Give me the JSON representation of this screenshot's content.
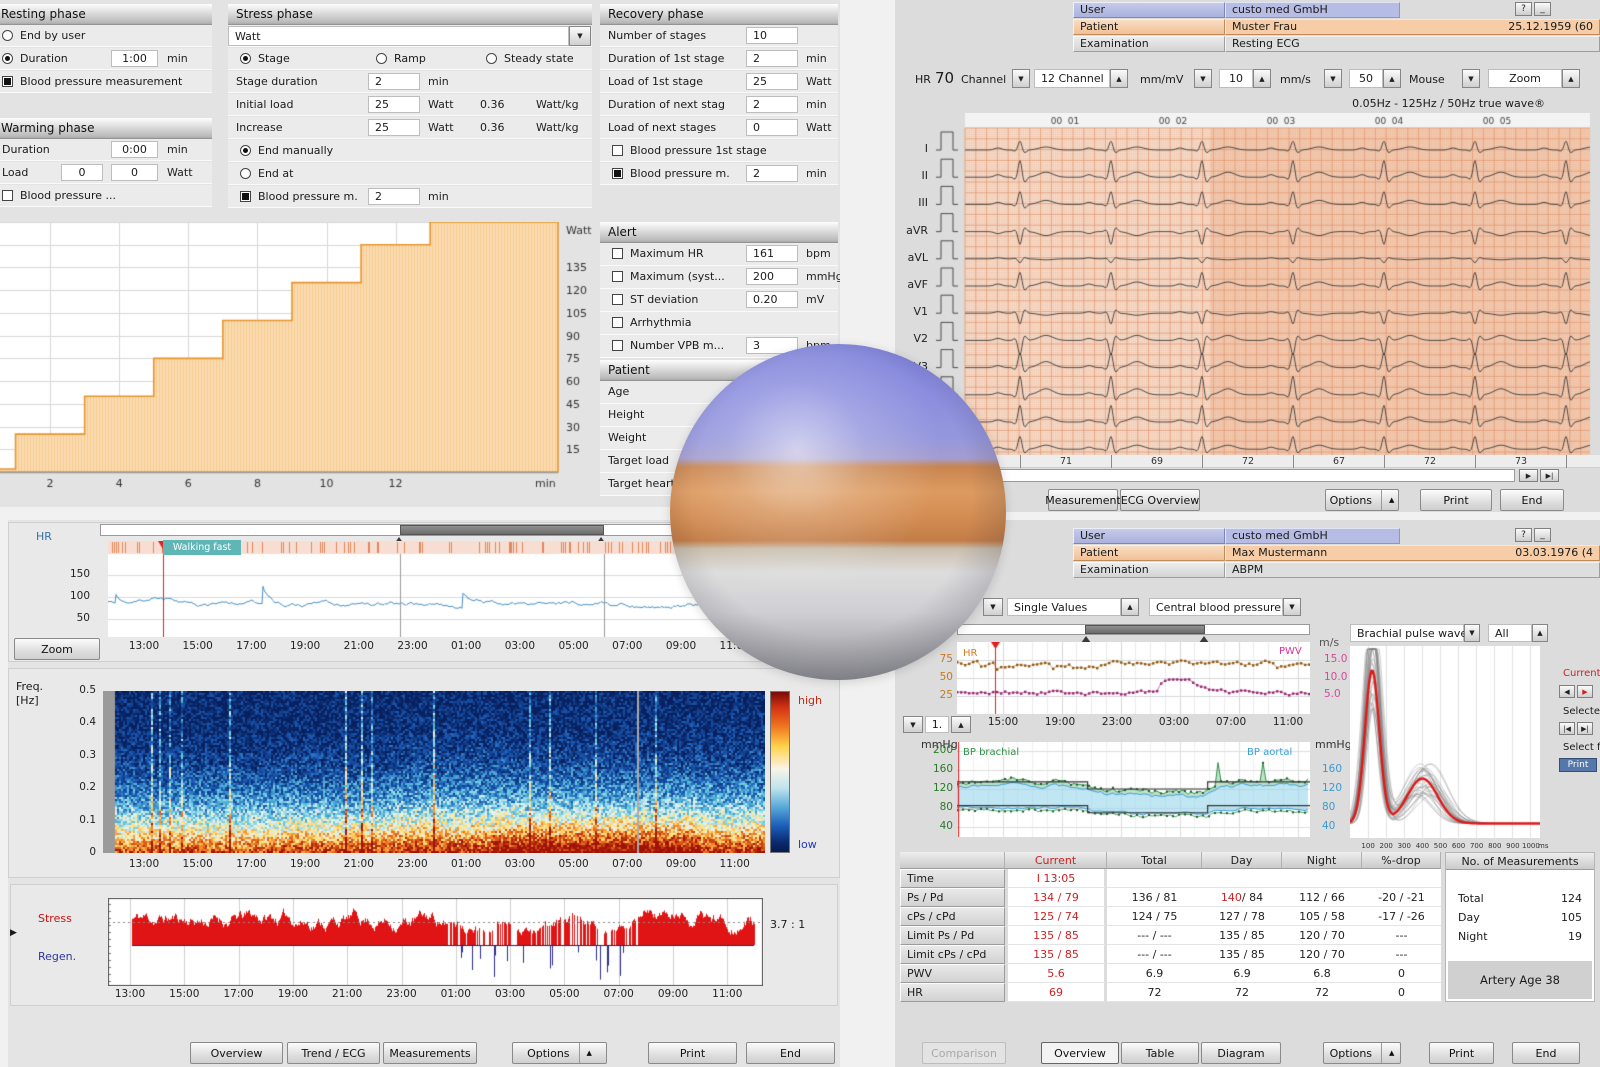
{
  "icons": {
    "down": "▼",
    "up": "▲",
    "right": "▶",
    "right_end": "▶|",
    "left": "◀",
    "left_end": "|◀",
    "play": "▶",
    "help": "?",
    "minimize": "_"
  },
  "top_left": {
    "resting_phase": {
      "title": "Resting phase",
      "end_by_user": "End by user",
      "duration_label": "Duration",
      "duration_value": "1:00",
      "duration_unit": "min",
      "bp_label": "Blood pressure measurement"
    },
    "warming_phase": {
      "title": "Warming phase",
      "duration_label": "Duration",
      "duration_value": "0:00",
      "duration_unit": "min",
      "load_label": "Load",
      "load_value1": "0",
      "load_value2": "0",
      "load_unit": "Watt",
      "bp_label": "Blood pressure ..."
    },
    "stress_phase": {
      "title": "Stress phase",
      "protocol": "Watt",
      "mode_stage": "Stage",
      "mode_ramp": "Ramp",
      "mode_steady": "Steady state",
      "rows": [
        {
          "label": "Stage duration",
          "value": "2",
          "unit": "min",
          "value2": "",
          "unit2": ""
        },
        {
          "label": "Initial load",
          "value": "25",
          "unit": "Watt",
          "value2": "0.36",
          "unit2": "Watt/kg"
        },
        {
          "label": "Increase",
          "value": "25",
          "unit": "Watt",
          "value2": "0.36",
          "unit2": "Watt/kg"
        }
      ],
      "end_manually": "End manually",
      "end_at": "End at",
      "bp_label": "Blood pressure m.",
      "bp_value": "2",
      "bp_unit": "min"
    },
    "recovery_phase": {
      "title": "Recovery phase",
      "rows": [
        {
          "label": "Number of stages",
          "value": "10",
          "unit": ""
        },
        {
          "label": "Duration of 1st stage",
          "value": "2",
          "unit": "min"
        },
        {
          "label": "Load of 1st stage",
          "value": "25",
          "unit": "Watt"
        },
        {
          "label": "Duration of next stag",
          "value": "2",
          "unit": "min"
        },
        {
          "label": "Load of next stages",
          "value": "0",
          "unit": "Watt"
        }
      ],
      "bp1_label": "Blood pressure 1st stage",
      "bp_label": "Blood pressure m.",
      "bp_value": "2",
      "bp_unit": "min"
    },
    "alert": {
      "title": "Alert",
      "rows": [
        {
          "label": "Maximum HR",
          "value": "161",
          "unit": "bpm"
        },
        {
          "label": "Maximum (syst...",
          "value": "200",
          "unit": "mmHg"
        },
        {
          "label": "ST deviation",
          "value": "0.20",
          "unit": "mV"
        },
        {
          "label": "Arrhythmia",
          "value": "",
          "unit": ""
        },
        {
          "label": "Number VPB m...",
          "value": "3",
          "unit": "bpm"
        }
      ]
    },
    "patient": {
      "title": "Patient",
      "rows": [
        "Age",
        "Height",
        "Weight",
        "Target load",
        "Target heart r."
      ]
    }
  },
  "top_right": {
    "header": {
      "user_label": "User",
      "user_value": "custo med GmbH",
      "patient_label": "Patient",
      "patient_value": "Muster Frau",
      "patient_dob": "25.12.1959 (60",
      "exam_label": "Examination",
      "exam_value": "Resting ECG"
    },
    "toolbar": {
      "hr_label": "HR",
      "hr_value": "70",
      "channel_label": "Channel",
      "channel_value": "12 Channel",
      "gain_label": "mm/mV",
      "gain_value": "10",
      "speed_label": "mm/s",
      "speed_value": "50",
      "mouse_label": "Mouse",
      "zoom_label": "Zoom"
    },
    "filter_note": "0.05Hz - 125Hz / 50Hz true wave®",
    "buttons": {
      "measurement": "Measurement",
      "ecg_overview": "ECG Overview",
      "options": "Options",
      "print": "Print",
      "end": "End"
    }
  },
  "bottom_left": {
    "hr_label": "HR",
    "zoom_button": "Zoom",
    "annotation": "Walking fast",
    "freq_label_1": "Freq.",
    "freq_label_2": "[Hz]",
    "scale_high": "high",
    "scale_low": "low",
    "stress_label": "Stress",
    "regen_label": "Regen.",
    "ratio": "3.7 : 1",
    "buttons": {
      "overview": "Overview",
      "trend_ecg": "Trend / ECG",
      "measurements": "Measurements",
      "options": "Options",
      "print": "Print",
      "end": "End"
    }
  },
  "bottom_right": {
    "header": {
      "user_label": "User",
      "user_value": "custo med GmbH",
      "patient_label": "Patient",
      "patient_value": "Max Mustermann",
      "patient_dob": "03.03.1976 (4",
      "exam_label": "Examination",
      "exam_value": "ABPM"
    },
    "selectors": {
      "single_values": "Single Values",
      "central_bp": "Central blood pressure",
      "pulse_wave": "Brachial pulse wave",
      "pulse_filter": "All"
    },
    "spinner_value": "1.",
    "side": {
      "current": "Current",
      "selected": "Selecte",
      "select_f": "Select f",
      "print": "Print"
    },
    "labels": {
      "ms_unit": "m/s",
      "mmhg_left": "mmHg",
      "mmhg_right": "mmHg"
    },
    "table": {
      "headers": [
        "Current",
        "Total",
        "Day",
        "Night",
        "%-drop"
      ],
      "meas_header": "No. of Measurements",
      "rows": [
        {
          "label": "Time",
          "current": "I 13:05",
          "total": "",
          "day": "",
          "night": "",
          "drop": ""
        },
        {
          "label": "Ps / Pd",
          "current": "134 / 79",
          "total": "136 / 81",
          "day_hi": "140",
          "day_rest": " / 84",
          "night": "112 / 66",
          "drop": "-20 / -21"
        },
        {
          "label": "cPs / cPd",
          "current": "125 / 74",
          "total": "124 / 75",
          "day": "127 / 78",
          "night": "105 / 58",
          "drop": "-17 / -26"
        },
        {
          "label": "Limit Ps / Pd",
          "current": "135 / 85",
          "total": "--- / ---",
          "day": "135 / 85",
          "night": "120 / 70",
          "drop": "---"
        },
        {
          "label": "Limit cPs / cPd",
          "current": "135 / 85",
          "total": "--- / ---",
          "day": "135 / 85",
          "night": "120 / 70",
          "drop": "---"
        },
        {
          "label": "PWV",
          "current": "5.6",
          "total": "6.9",
          "day": "6.9",
          "night": "6.8",
          "drop": "0"
        },
        {
          "label": "HR",
          "current": "69",
          "total": "72",
          "day": "72",
          "night": "72",
          "drop": "0"
        }
      ],
      "meas_rows": [
        {
          "label": "Total",
          "value": "124"
        },
        {
          "label": "Day",
          "value": "105"
        },
        {
          "label": "Night",
          "value": "19"
        }
      ],
      "artery_age": "Artery Age 38"
    },
    "buttons": {
      "comparison": "Comparison",
      "overview": "Overview",
      "table": "Table",
      "diagram": "Diagram",
      "options": "Options",
      "print": "Print",
      "end": "End"
    }
  },
  "sphere": {
    "colors": {
      "top": "#8a8cde",
      "middle": "#d08a52",
      "bottom": "#c6c6c9"
    }
  },
  "chart_data": [
    {
      "id": "load_profile",
      "type": "step-area",
      "ylabel": "Watt",
      "xlabel": "min",
      "x_ticks": [
        2,
        4,
        6,
        8,
        10,
        12
      ],
      "y_ticks": [
        15,
        30,
        45,
        60,
        75,
        90,
        105,
        120,
        135
      ],
      "ylim": [
        0,
        165
      ],
      "xlim": [
        0.55,
        16.7
      ],
      "steps_min_watt": [
        [
          0,
          2
        ],
        [
          1,
          25
        ],
        [
          3,
          50
        ],
        [
          5,
          75
        ],
        [
          7,
          100
        ],
        [
          9,
          125
        ],
        [
          11,
          150
        ],
        [
          13,
          165
        ]
      ],
      "fill": "#fbdcb0",
      "line": "#e8952f"
    },
    {
      "id": "resting_ecg",
      "type": "line",
      "leads": [
        "I",
        "II",
        "III",
        "aVR",
        "aVL",
        "aVF",
        "V1",
        "V2",
        "V3",
        "V4",
        "V5",
        "V6"
      ],
      "hr_bpm": 70,
      "rr_values": [
        "71",
        "69",
        "72",
        "67",
        "72",
        "73"
      ],
      "seconds_labels": [
        "00|01",
        "00|02",
        "00|03",
        "00|04",
        "00|05"
      ],
      "speed": "50 mm/s",
      "gain": "10 mm/mV",
      "paper_color": "#f6cfb6"
    },
    {
      "id": "hr_trend",
      "type": "line",
      "label": "HR",
      "y_ticks": [
        "150",
        "100",
        "50"
      ],
      "x_ticks": [
        "13:00",
        "15:00",
        "17:00",
        "19:00",
        "21:00",
        "23:00",
        "01:00",
        "03:00",
        "05:00",
        "07:00",
        "09:00",
        "11:00"
      ],
      "mean_bpm": 85,
      "max_bpm": 140,
      "annotation": {
        "label": "Walking fast",
        "time": "14:15"
      },
      "line_color": "#4a90c4"
    },
    {
      "id": "hrv_spectrogram",
      "type": "heatmap",
      "ylabel": "Freq. [Hz]",
      "y_ticks": [
        "0.5",
        "0.4",
        "0.3",
        "0.2",
        "0.1",
        "0"
      ],
      "x_ticks": [
        "13:00",
        "15:00",
        "17:00",
        "19:00",
        "21:00",
        "23:00",
        "01:00",
        "03:00",
        "05:00",
        "07:00",
        "09:00",
        "11:00"
      ],
      "colorbar": {
        "high": "high",
        "low": "low"
      },
      "palette": [
        "#08205e",
        "#1b5cb8",
        "#64c8e0",
        "#e8f4f4",
        "#ffe070",
        "#f07820",
        "#a01208"
      ]
    },
    {
      "id": "stress_regen",
      "type": "area",
      "series": [
        "Stress",
        "Regen."
      ],
      "ratio_label": "3.7 : 1",
      "x_ticks": [
        "13:00",
        "15:00",
        "17:00",
        "19:00",
        "21:00",
        "23:00",
        "01:00",
        "03:00",
        "05:00",
        "07:00",
        "09:00",
        "11:00"
      ],
      "stress_color": "#e01414",
      "regen_color": "#2d2d90",
      "night_span": [
        0.5,
        0.82
      ]
    },
    {
      "id": "hr_pwv",
      "type": "line-scatter",
      "series": [
        {
          "name": "HR",
          "color": "#dfa55f",
          "axis": "left",
          "mean": 70
        },
        {
          "name": "PWV",
          "color": "#e06ab8",
          "axis": "right",
          "mean_m_s": 6
        }
      ],
      "left_ticks": [
        "75",
        "50",
        "25"
      ],
      "right_ticks": [
        "15.0",
        "10.0",
        "5.0"
      ],
      "right_unit": "m/s",
      "x_ticks": [
        "15:00",
        "19:00",
        "23:00",
        "03:00",
        "07:00",
        "11:00"
      ]
    },
    {
      "id": "bp_trend",
      "type": "band-line",
      "series": [
        "BP brachial",
        "BP aortal"
      ],
      "unit": "mmHg",
      "left_ticks": [
        "200",
        "160",
        "120",
        "80",
        "40"
      ],
      "right_ticks": [
        "160",
        "120",
        "80",
        "40"
      ],
      "day_avg": "140/84",
      "night_avg": "112/66",
      "limits": {
        "day": "135/85",
        "night": "120/70"
      },
      "night_span": [
        0.37,
        0.71
      ],
      "brachial_color": "#2f9148",
      "aortal_color": "#38a0d8"
    },
    {
      "id": "pulse_waves",
      "type": "line",
      "title": "Brachial pulse wave",
      "x_ticks_ms": [
        100,
        200,
        300,
        400,
        500,
        600,
        700,
        800,
        900,
        1000
      ],
      "x_unit": "ms",
      "n_curves": 32,
      "highlight_color": "#e01818"
    }
  ]
}
